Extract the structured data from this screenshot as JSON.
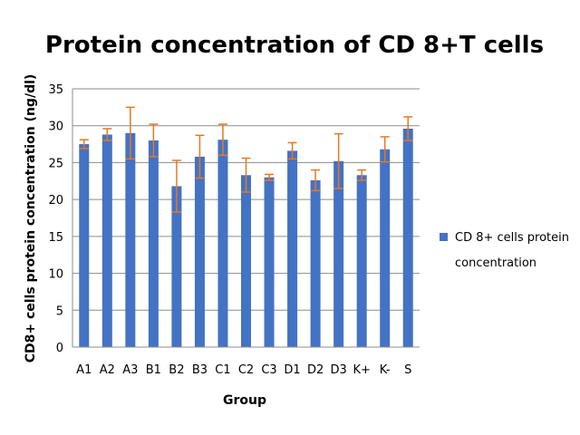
{
  "chart_data": {
    "type": "bar",
    "title": "Protein concentration of CD 8+T cells",
    "xlabel": "Group",
    "ylabel": "CD8+ cells protein concentration (ng/dl)",
    "ylim": [
      0,
      35
    ],
    "yticks": [
      0,
      5,
      10,
      15,
      20,
      25,
      30,
      35
    ],
    "grid": true,
    "legend_position": "right",
    "categories": [
      "A1",
      "A2",
      "A3",
      "B1",
      "B2",
      "B3",
      "C1",
      "C2",
      "C3",
      "D1",
      "D2",
      "D3",
      "K+",
      "K-",
      "S"
    ],
    "series": [
      {
        "name": "CD 8+ cells protein concentration",
        "color": "#4472C4",
        "values": [
          27.5,
          28.8,
          29.0,
          28.0,
          21.8,
          25.8,
          28.1,
          23.3,
          23.0,
          26.6,
          22.6,
          25.2,
          23.3,
          26.8,
          29.6
        ],
        "error": [
          0.6,
          0.8,
          3.5,
          2.2,
          3.5,
          2.9,
          2.1,
          2.3,
          0.4,
          1.1,
          1.4,
          3.7,
          0.7,
          1.7,
          1.6
        ]
      }
    ],
    "error_bar_color": "#E87722"
  }
}
